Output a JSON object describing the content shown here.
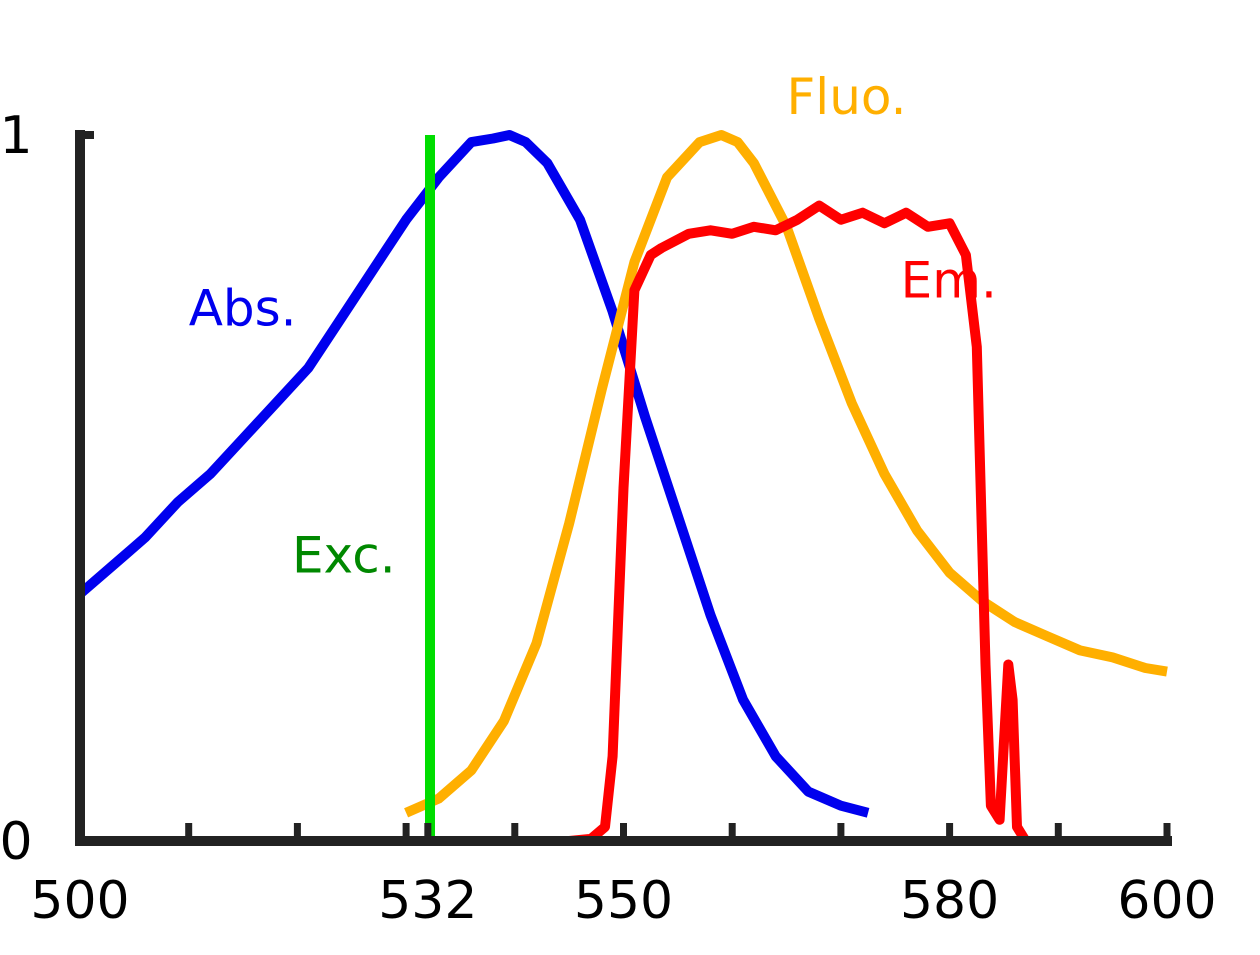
{
  "chart_data": {
    "type": "line",
    "title": "",
    "xlabel": "",
    "ylabel": "",
    "xlim": [
      500,
      600
    ],
    "ylim": [
      0,
      1
    ],
    "x_tick_labels": [
      {
        "value": 500,
        "label": "500"
      },
      {
        "value": 532,
        "label": "532"
      },
      {
        "value": 550,
        "label": "550"
      },
      {
        "value": 580,
        "label": "580"
      },
      {
        "value": 600,
        "label": "600"
      }
    ],
    "x_minor_ticks": [
      510,
      520,
      530,
      540,
      560,
      570,
      590
    ],
    "y_tick_labels": [
      {
        "value": 0,
        "label": "0"
      },
      {
        "value": 1,
        "label": "1"
      }
    ],
    "series": [
      {
        "name": "Abs.",
        "color": "#0000ee",
        "label_anchor": [
          510,
          0.73
        ],
        "x": [
          500,
          503,
          506,
          509,
          512,
          515,
          518,
          521,
          524,
          527,
          530,
          533,
          536,
          538,
          539.5,
          541,
          543,
          546,
          549,
          552,
          555,
          558,
          561,
          564,
          567,
          570,
          572.5
        ],
        "y": [
          0.35,
          0.39,
          0.43,
          0.48,
          0.52,
          0.57,
          0.62,
          0.67,
          0.74,
          0.81,
          0.88,
          0.94,
          0.99,
          0.995,
          1.0,
          0.99,
          0.96,
          0.88,
          0.75,
          0.6,
          0.46,
          0.32,
          0.2,
          0.12,
          0.07,
          0.05,
          0.04
        ]
      },
      {
        "name": "Fluo.",
        "color": "#ffaf00",
        "label_anchor": [
          565,
          1.03
        ],
        "x": [
          530,
          533,
          536,
          539,
          542,
          545,
          548,
          551,
          554,
          557,
          559,
          560.5,
          562,
          565,
          568,
          571,
          574,
          577,
          580,
          583,
          586,
          589,
          592,
          595,
          598,
          600
        ],
        "y": [
          0.04,
          0.06,
          0.1,
          0.17,
          0.28,
          0.45,
          0.64,
          0.82,
          0.94,
          0.99,
          1.0,
          0.99,
          0.96,
          0.87,
          0.74,
          0.62,
          0.52,
          0.44,
          0.38,
          0.34,
          0.31,
          0.29,
          0.27,
          0.26,
          0.245,
          0.24
        ]
      },
      {
        "name": "Em.",
        "color": "#ff0000",
        "label_anchor": [
          575.5,
          0.77
        ],
        "x": [
          500,
          545,
          547,
          548.3,
          549,
          550,
          551,
          552.5,
          553.5,
          556,
          558,
          560,
          562,
          564,
          566,
          568,
          570,
          572,
          574,
          576,
          578,
          580,
          581.5,
          582.5,
          583.3,
          583.8,
          584.6,
          585.4,
          585.8,
          586.2,
          587,
          590,
          600
        ],
        "y": [
          0,
          0,
          0.003,
          0.02,
          0.12,
          0.5,
          0.78,
          0.83,
          0.84,
          0.86,
          0.865,
          0.86,
          0.87,
          0.865,
          0.88,
          0.9,
          0.88,
          0.89,
          0.875,
          0.89,
          0.87,
          0.875,
          0.83,
          0.7,
          0.25,
          0.05,
          0.03,
          0.25,
          0.2,
          0.02,
          0,
          0,
          0
        ]
      },
      {
        "name": "Exc.",
        "color": "#00dd00",
        "label_color": "#008800",
        "label_anchor": [
          519.5,
          0.38
        ],
        "x": [
          532.2,
          532.2
        ],
        "y": [
          0,
          1.0
        ]
      }
    ]
  }
}
